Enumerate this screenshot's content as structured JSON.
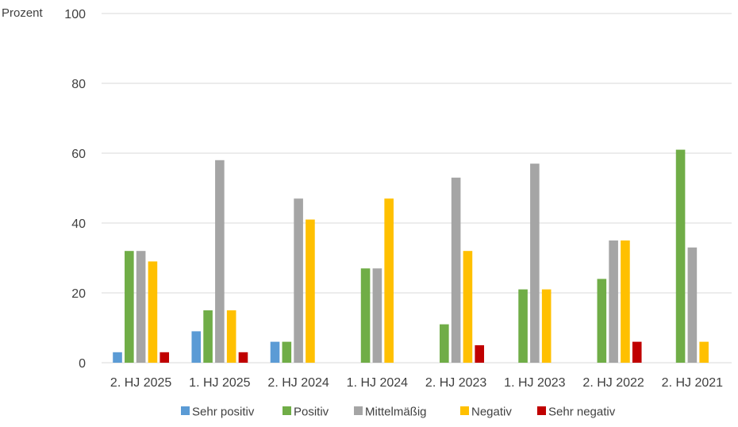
{
  "chart_data": {
    "type": "bar",
    "title": "",
    "xlabel": "",
    "ylabel": "Prozent",
    "ylim": [
      0,
      100
    ],
    "yticks": [
      0,
      20,
      40,
      60,
      80,
      100
    ],
    "grid": true,
    "legend_position": "bottom",
    "categories": [
      "2. HJ 2025",
      "1. HJ 2025",
      "2. HJ 2024",
      "1. HJ 2024",
      "2. HJ 2023",
      "1. HJ 2023",
      "2. HJ 2022",
      "2. HJ 2021"
    ],
    "series": [
      {
        "name": "Sehr positiv",
        "color": "#5b9bd5",
        "values": [
          3,
          9,
          6,
          0,
          0,
          0,
          0,
          0
        ]
      },
      {
        "name": "Positiv",
        "color": "#70ad47",
        "values": [
          32,
          15,
          6,
          27,
          11,
          21,
          24,
          61
        ]
      },
      {
        "name": "Mittelmäßig",
        "color": "#a5a5a5",
        "values": [
          32,
          58,
          47,
          27,
          53,
          57,
          35,
          33
        ]
      },
      {
        "name": "Negativ",
        "color": "#ffc000",
        "values": [
          29,
          15,
          41,
          47,
          32,
          21,
          35,
          6
        ]
      },
      {
        "name": "Sehr negativ",
        "color": "#c00000",
        "values": [
          3,
          3,
          0,
          0,
          5,
          0,
          6,
          0
        ]
      }
    ]
  }
}
